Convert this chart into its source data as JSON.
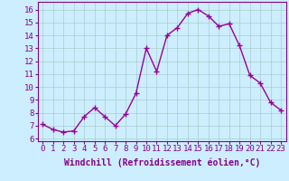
{
  "x": [
    0,
    1,
    2,
    3,
    4,
    5,
    6,
    7,
    8,
    9,
    10,
    11,
    12,
    13,
    14,
    15,
    16,
    17,
    18,
    19,
    20,
    21,
    22,
    23
  ],
  "y": [
    7.1,
    6.7,
    6.5,
    6.6,
    7.7,
    8.4,
    7.7,
    7.0,
    7.9,
    9.5,
    13.0,
    11.2,
    14.0,
    14.6,
    15.7,
    16.0,
    15.5,
    14.7,
    14.9,
    13.2,
    10.9,
    10.3,
    8.8,
    8.2
  ],
  "line_color": "#990099",
  "marker": "+",
  "markersize": 4,
  "linewidth": 1.0,
  "bg_color": "#cceeff",
  "grid_color": "#aacccc",
  "xlabel": "Windchill (Refroidissement éolien,°C)",
  "xlabel_fontsize": 7,
  "xtick_labels": [
    "0",
    "1",
    "2",
    "3",
    "4",
    "5",
    "6",
    "7",
    "8",
    "9",
    "10",
    "11",
    "12",
    "13",
    "14",
    "15",
    "16",
    "17",
    "18",
    "19",
    "20",
    "21",
    "22",
    "23"
  ],
  "ytick_min": 6,
  "ytick_max": 16,
  "ytick_step": 1,
  "ylim": [
    5.8,
    16.6
  ],
  "xlim": [
    -0.5,
    23.5
  ],
  "tick_fontsize": 6.5,
  "tick_color": "#880088",
  "label_color": "#880088",
  "spine_color": "#880088"
}
